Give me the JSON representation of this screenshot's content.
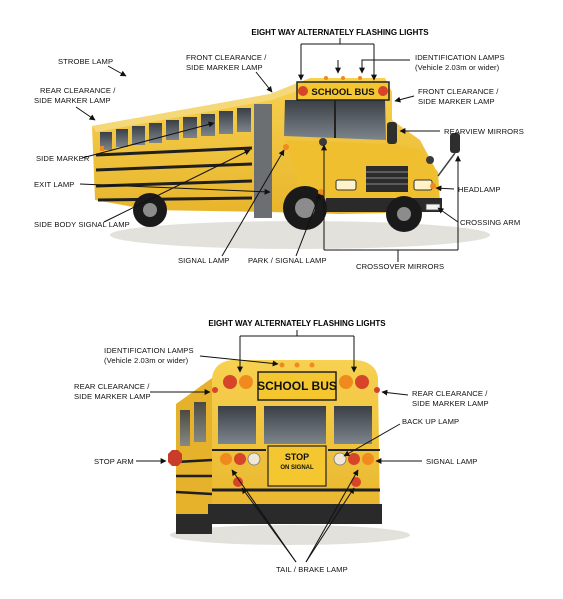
{
  "front": {
    "header": "EIGHT WAY ALTERNATELY FLASHING LIGHTS",
    "sign": "SCHOOL BUS",
    "labels": {
      "strobe": "STROBE LAMP",
      "rear_clear_1": "REAR CLEARANCE /",
      "rear_clear_2": "SIDE MARKER LAMP",
      "front_clear_top_1": "FRONT CLEARANCE /",
      "front_clear_top_2": "SIDE MARKER LAMP",
      "ident_1": "IDENTIFICATION LAMPS",
      "ident_2": "(Vehicle 2.03m or wider)",
      "front_clear_right_1": "FRONT CLEARANCE /",
      "front_clear_right_2": "SIDE MARKER LAMP",
      "rearview": "REARVIEW MIRRORS",
      "side_marker": "SIDE MARKER",
      "exit": "EXIT LAMP",
      "headlamp": "HEADLAMP",
      "side_body": "SIDE BODY SIGNAL LAMP",
      "crossing": "CROSSING ARM",
      "signal": "SIGNAL LAMP",
      "park": "PARK / SIGNAL LAMP",
      "crossover": "CROSSOVER MIRRORS"
    }
  },
  "rear": {
    "header": "EIGHT WAY ALTERNATELY FLASHING LIGHTS",
    "sign": "SCHOOL BUS",
    "stop_1": "STOP",
    "stop_2": "ON SIGNAL",
    "labels": {
      "ident_1": "IDENTIFICATION LAMPS",
      "ident_2": "(Vehicle 2.03m or wider)",
      "rear_clear_left_1": "REAR CLEARANCE /",
      "rear_clear_left_2": "SIDE MARKER LAMP",
      "rear_clear_right_1": "REAR CLEARANCE /",
      "rear_clear_right_2": "SIDE MARKER LAMP",
      "backup": "BACK UP LAMP",
      "stop_arm": "STOP ARM",
      "signal": "SIGNAL LAMP",
      "tail": "TAIL / BRAKE LAMP"
    }
  },
  "colors": {
    "bus_yellow": "#f2c53a",
    "bus_dark": "#1f1f1f",
    "lamp_red": "#d6452a",
    "lamp_amber": "#f08a1e"
  }
}
